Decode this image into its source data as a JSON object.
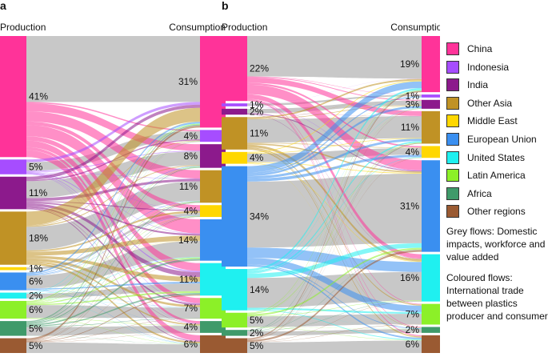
{
  "panels": [
    {
      "label": "a",
      "production_header": "Production",
      "consumption_header": "Consumption",
      "production_labels": [
        "41%",
        "5%",
        "11%",
        "18%",
        "1%",
        "6%",
        "2%",
        "6%",
        "5%",
        "5%"
      ],
      "consumption_labels": [
        "31%",
        "4%",
        "8%",
        "11%",
        "4%",
        "14%",
        "11%",
        "7%",
        "4%",
        "6%"
      ]
    },
    {
      "label": "b",
      "production_header": "Production",
      "consumption_header": "Consumption",
      "production_labels": [
        "22%",
        "1%",
        "2%",
        "11%",
        "4%",
        "34%",
        "14%",
        "5%",
        "2%",
        "5%"
      ],
      "consumption_labels": [
        "19%",
        "1%",
        "3%",
        "11%",
        "4%",
        "31%",
        "16%",
        "7%",
        "2%",
        "6%"
      ]
    }
  ],
  "regions": [
    {
      "name": "China",
      "color": "#ff3399"
    },
    {
      "name": "Indonesia",
      "color": "#a64dff"
    },
    {
      "name": "India",
      "color": "#8c1a8c"
    },
    {
      "name": "Other Asia",
      "color": "#c09225"
    },
    {
      "name": "Middle East",
      "color": "#ffd700"
    },
    {
      "name": "European Union",
      "color": "#3a8ff0"
    },
    {
      "name": "United States",
      "color": "#1ff0f0"
    },
    {
      "name": "Latin America",
      "color": "#8cf028"
    },
    {
      "name": "Africa",
      "color": "#3f9a6a"
    },
    {
      "name": "Other regions",
      "color": "#9a5a32"
    }
  ],
  "notes": {
    "grey": "Grey flows: Domestic impacts, workforce and value added",
    "coloured": "Coloured flows: International trade between plastics producer and consumer"
  },
  "chart_data": [
    {
      "type": "sankey",
      "title": "a",
      "left_axis": "Production",
      "right_axis": "Consumption",
      "categories": [
        "China",
        "Indonesia",
        "India",
        "Other Asia",
        "Middle East",
        "European Union",
        "United States",
        "Latin America",
        "Africa",
        "Other regions"
      ],
      "production_pct": [
        41,
        5,
        11,
        18,
        1,
        6,
        2,
        6,
        5,
        5
      ],
      "consumption_pct": [
        31,
        4,
        8,
        11,
        4,
        14,
        11,
        7,
        4,
        6
      ]
    },
    {
      "type": "sankey",
      "title": "b",
      "left_axis": "Production",
      "right_axis": "Consumption",
      "categories": [
        "China",
        "Indonesia",
        "India",
        "Other Asia",
        "Middle East",
        "European Union",
        "United States",
        "Latin America",
        "Africa",
        "Other regions"
      ],
      "production_pct": [
        22,
        1,
        2,
        11,
        4,
        34,
        14,
        5,
        2,
        5
      ],
      "consumption_pct": [
        19,
        1,
        3,
        11,
        4,
        31,
        16,
        7,
        2,
        6
      ]
    }
  ]
}
